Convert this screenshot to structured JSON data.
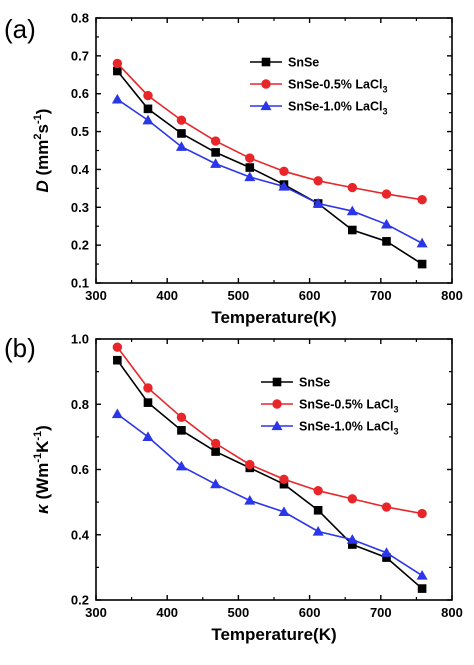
{
  "chart_data": [
    {
      "type": "line",
      "panel_label": "(a)",
      "xlabel": "Temperature(K)",
      "ylabel": "D (mm²s⁻¹)",
      "ylabel_parts": {
        "var": "D",
        "open": " (mm",
        "sup1": "2",
        "mid": "s",
        "sup2": "-1",
        "close": ")"
      },
      "xlim": [
        300,
        800
      ],
      "ylim": [
        0.1,
        0.8
      ],
      "xticks": [
        "300",
        "400",
        "500",
        "600",
        "700",
        "800"
      ],
      "yticks": [
        "0.1",
        "0.2",
        "0.3",
        "0.4",
        "0.5",
        "0.6",
        "0.7",
        "0.8"
      ],
      "legend_position": "top-right",
      "grid": false,
      "series": [
        {
          "name": "SnSe",
          "name_parts": {
            "base": "SnSe",
            "sub": ""
          },
          "color": "#000000",
          "marker": "square",
          "x": [
            330,
            373,
            420,
            468,
            516,
            564,
            612,
            660,
            708,
            758
          ],
          "y": [
            0.66,
            0.56,
            0.495,
            0.445,
            0.405,
            0.36,
            0.31,
            0.24,
            0.21,
            0.15
          ]
        },
        {
          "name": "SnSe-0.5% LaCl3",
          "name_parts": {
            "base": "SnSe-0.5% LaCl",
            "sub": "3"
          },
          "color": "#e8262a",
          "marker": "circle",
          "x": [
            330,
            373,
            420,
            468,
            516,
            564,
            612,
            660,
            708,
            758
          ],
          "y": [
            0.68,
            0.595,
            0.53,
            0.475,
            0.43,
            0.395,
            0.37,
            0.352,
            0.335,
            0.32
          ]
        },
        {
          "name": "SnSe-1.0% LaCl3",
          "name_parts": {
            "base": "SnSe-1.0% LaCl",
            "sub": "3"
          },
          "color": "#2a36e8",
          "marker": "triangle",
          "x": [
            330,
            373,
            420,
            468,
            516,
            564,
            612,
            660,
            708,
            758
          ],
          "y": [
            0.585,
            0.53,
            0.46,
            0.415,
            0.38,
            0.355,
            0.31,
            0.29,
            0.255,
            0.205
          ]
        }
      ]
    },
    {
      "type": "line",
      "panel_label": "(b)",
      "xlabel": "Temperature(K)",
      "ylabel": "κ (Wm⁻¹K⁻¹)",
      "ylabel_parts": {
        "var": "κ",
        "open": " (Wm",
        "sup1": "-1",
        "mid": "K",
        "sup2": "-1",
        "close": ")"
      },
      "xlim": [
        300,
        800
      ],
      "ylim": [
        0.2,
        1.0
      ],
      "xticks": [
        "300",
        "400",
        "500",
        "600",
        "700",
        "800"
      ],
      "yticks": [
        "0.2",
        "0.4",
        "0.6",
        "0.8",
        "1.0"
      ],
      "legend_position": "top-right",
      "grid": false,
      "series": [
        {
          "name": "SnSe",
          "name_parts": {
            "base": "SnSe",
            "sub": ""
          },
          "color": "#000000",
          "marker": "square",
          "x": [
            330,
            373,
            420,
            468,
            516,
            564,
            612,
            660,
            708,
            758
          ],
          "y": [
            0.935,
            0.805,
            0.72,
            0.655,
            0.605,
            0.555,
            0.475,
            0.37,
            0.33,
            0.235
          ]
        },
        {
          "name": "SnSe-0.5% LaCl3",
          "name_parts": {
            "base": "SnSe-0.5% LaCl",
            "sub": "3"
          },
          "color": "#e8262a",
          "marker": "circle",
          "x": [
            330,
            373,
            420,
            468,
            516,
            564,
            612,
            660,
            708,
            758
          ],
          "y": [
            0.975,
            0.85,
            0.76,
            0.68,
            0.615,
            0.57,
            0.535,
            0.51,
            0.485,
            0.465
          ]
        },
        {
          "name": "SnSe-1.0% LaCl3",
          "name_parts": {
            "base": "SnSe-1.0% LaCl",
            "sub": "3"
          },
          "color": "#2a36e8",
          "marker": "triangle",
          "x": [
            330,
            373,
            420,
            468,
            516,
            564,
            612,
            660,
            708,
            758
          ],
          "y": [
            0.77,
            0.7,
            0.61,
            0.555,
            0.505,
            0.47,
            0.41,
            0.385,
            0.345,
            0.275
          ]
        }
      ]
    }
  ]
}
